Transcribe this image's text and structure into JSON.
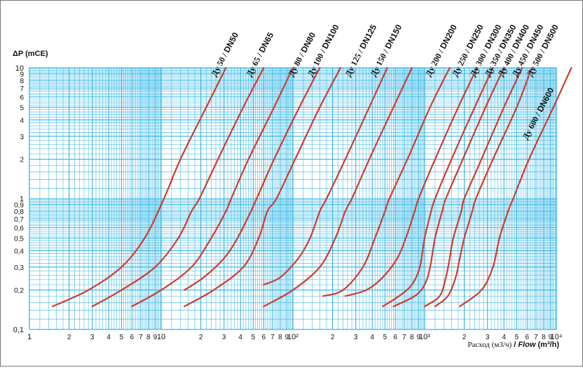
{
  "chart_data": {
    "type": "line",
    "log_x": true,
    "log_y": true,
    "xlim": [
      1,
      10000
    ],
    "ylim": [
      0.1,
      10
    ],
    "grid": true,
    "ylabel": "ΔP (mCE)",
    "xlabel_ru": "Расход (м3/ч)",
    "xlabel_sep": " / ",
    "xlabel_en": "Flow",
    "xlabel_unit": " (m³/h)",
    "x_ticks": [
      "1",
      "2",
      "3",
      "4",
      "5",
      "6",
      "7",
      "8",
      "9",
      "10",
      "2",
      "3",
      "4",
      "5",
      "6",
      "7",
      "8",
      "9",
      "10²",
      "2",
      "3",
      "4",
      "5",
      "6",
      "7",
      "8",
      "9",
      "10³",
      "2",
      "3",
      "4",
      "5",
      "6",
      "7",
      "8",
      "9",
      "10⁴"
    ],
    "y_ticks": [
      "0,1",
      "0,2",
      "0,3",
      "0,4",
      "0,5",
      "0,6",
      "0,7",
      "0,8",
      "0,9",
      "1",
      "2",
      "3",
      "4",
      "5",
      "6",
      "7",
      "8",
      "9",
      "10"
    ],
    "series": [
      {
        "name": "Ду 50 / DN50",
        "points": [
          [
            1.5,
            0.15
          ],
          [
            2.8,
            0.2
          ],
          [
            5,
            0.3
          ],
          [
            7.5,
            0.5
          ],
          [
            10.5,
            1
          ],
          [
            14,
            2
          ],
          [
            22,
            5
          ],
          [
            31,
            10
          ]
        ]
      },
      {
        "name": "Ду 65 / DN65",
        "points": [
          [
            3,
            0.15
          ],
          [
            5,
            0.2
          ],
          [
            9,
            0.3
          ],
          [
            13.5,
            0.5
          ],
          [
            17,
            0.8
          ],
          [
            19.5,
            1
          ],
          [
            27,
            2
          ],
          [
            42,
            5
          ],
          [
            60,
            10
          ]
        ]
      },
      {
        "name": "Ду 80 / DN80",
        "points": [
          [
            6,
            0.15
          ],
          [
            10,
            0.2
          ],
          [
            17,
            0.3
          ],
          [
            24,
            0.5
          ],
          [
            31,
            0.8
          ],
          [
            34,
            1
          ],
          [
            46,
            2
          ],
          [
            72,
            5
          ],
          [
            100,
            10
          ]
        ]
      },
      {
        "name": "Ду 100 / DN100",
        "points": [
          [
            15,
            0.2
          ],
          [
            21,
            0.25
          ],
          [
            30,
            0.35
          ],
          [
            38,
            0.5
          ],
          [
            48,
            0.8
          ],
          [
            53,
            1
          ],
          [
            72,
            2
          ],
          [
            112,
            5
          ],
          [
            160,
            10
          ]
        ]
      },
      {
        "name": "Ду 100 / DN100",
        "points": [
          [
            15,
            0.15
          ],
          [
            25,
            0.2
          ],
          [
            42,
            0.3
          ],
          [
            55,
            0.5
          ],
          [
            64,
            0.8
          ],
          [
            75,
            1
          ],
          [
            104,
            2
          ],
          [
            160,
            5
          ],
          [
            230,
            10
          ]
        ]
      },
      {
        "name": "Ду 125 / DN125",
        "points": [
          [
            60,
            0.22
          ],
          [
            80,
            0.25
          ],
          [
            110,
            0.35
          ],
          [
            135,
            0.5
          ],
          [
            160,
            0.8
          ],
          [
            180,
            1
          ],
          [
            250,
            2
          ],
          [
            380,
            5
          ],
          [
            520,
            10
          ]
        ]
      },
      {
        "name": "Ду 125 / DN125",
        "points": [
          [
            60,
            0.15
          ],
          [
            100,
            0.2
          ],
          [
            160,
            0.3
          ],
          [
            210,
            0.5
          ],
          [
            250,
            0.8
          ],
          [
            280,
            1
          ],
          [
            380,
            2
          ],
          [
            580,
            5
          ],
          [
            800,
            10
          ]
        ]
      },
      {
        "name": "Ду 150 / DN150",
        "points": [
          [
            170,
            0.18
          ],
          [
            240,
            0.2
          ],
          [
            340,
            0.3
          ],
          [
            420,
            0.5
          ],
          [
            500,
            0.8
          ],
          [
            540,
            1
          ],
          [
            740,
            2
          ],
          [
            1100,
            5
          ],
          [
            1550,
            10
          ]
        ]
      },
      {
        "name": "Ду 200 / DN200",
        "points": [
          [
            250,
            0.18
          ],
          [
            360,
            0.2
          ],
          [
            480,
            0.25
          ],
          [
            620,
            0.35
          ],
          [
            720,
            0.5
          ],
          [
            840,
            0.8
          ],
          [
            900,
            1
          ],
          [
            1200,
            2
          ],
          [
            1800,
            5
          ],
          [
            2500,
            10
          ]
        ]
      },
      {
        "name": "Ду 250 / DN250",
        "points": [
          [
            480,
            0.15
          ],
          [
            640,
            0.18
          ],
          [
            800,
            0.22
          ],
          [
            920,
            0.3
          ],
          [
            1000,
            0.5
          ],
          [
            1120,
            0.8
          ],
          [
            1200,
            1
          ],
          [
            1600,
            2
          ],
          [
            2400,
            5
          ],
          [
            3300,
            10
          ]
        ]
      },
      {
        "name": "Ду 300 / DN300",
        "points": [
          [
            580,
            0.15
          ],
          [
            840,
            0.18
          ],
          [
            1000,
            0.22
          ],
          [
            1100,
            0.3
          ],
          [
            1200,
            0.5
          ],
          [
            1360,
            0.8
          ],
          [
            1450,
            1
          ],
          [
            1950,
            2
          ],
          [
            2900,
            5
          ],
          [
            4000,
            10
          ]
        ]
      },
      {
        "name": "Ду 350 / DN350",
        "points": [
          [
            1200,
            0.15
          ],
          [
            1500,
            0.18
          ],
          [
            1720,
            0.25
          ],
          [
            1850,
            0.35
          ],
          [
            2000,
            0.5
          ],
          [
            2300,
            0.8
          ],
          [
            2450,
            1
          ],
          [
            3300,
            2
          ],
          [
            5000,
            5
          ],
          [
            6500,
            10
          ]
        ]
      },
      {
        "name": "Ду 400 / DN400",
        "points": [
          [
            1000,
            0.15
          ],
          [
            1300,
            0.18
          ],
          [
            1450,
            0.25
          ],
          [
            1550,
            0.35
          ],
          [
            1650,
            0.5
          ],
          [
            1900,
            0.8
          ],
          [
            2000,
            1
          ],
          [
            2700,
            2
          ],
          [
            4000,
            5
          ],
          [
            5500,
            10
          ]
        ]
      },
      {
        "name": "Ду 600 / DN600",
        "points": [
          [
            1850,
            0.15
          ],
          [
            2700,
            0.2
          ],
          [
            3300,
            0.3
          ],
          [
            3700,
            0.5
          ],
          [
            4300,
            0.8
          ],
          [
            4700,
            1
          ],
          [
            6200,
            2
          ],
          [
            9500,
            5
          ],
          [
            13000,
            10
          ]
        ]
      }
    ],
    "labels": [
      {
        "ru": "Ду 50 /",
        "en": "DN50",
        "x": 26,
        "y": 8.5
      },
      {
        "ru": "Ду 65 /",
        "en": "DN65",
        "x": 48,
        "y": 8.5
      },
      {
        "ru": "Ду 80 /",
        "en": "DN80",
        "x": 100,
        "y": 8.5
      },
      {
        "ru": "Ду 100 /",
        "en": "DN100",
        "x": 140,
        "y": 8.5
      },
      {
        "ru": "Ду 125 /",
        "en": "DN125",
        "x": 270,
        "y": 8.5
      },
      {
        "ru": "Ду 150 /",
        "en": "DN150",
        "x": 420,
        "y": 8.5
      },
      {
        "ru": "Ду 200 /",
        "en": "DN200",
        "x": 1100,
        "y": 8.5
      },
      {
        "ru": "Ду 250 /",
        "en": "DN250",
        "x": 1750,
        "y": 8.5
      },
      {
        "ru": "Ду 300 /",
        "en": "DN300",
        "x": 2400,
        "y": 8.5
      },
      {
        "ru": "Ду 350 /",
        "en": "DN350",
        "x": 3100,
        "y": 8.5
      },
      {
        "ru": "Ду 400 /",
        "en": "DN400",
        "x": 3900,
        "y": 8.5
      },
      {
        "ru": "Ду 450 /",
        "en": "DN450",
        "x": 5000,
        "y": 8.5
      },
      {
        "ru": "Ду 500 /",
        "en": "DN500",
        "x": 6500,
        "y": 8.5
      },
      {
        "ru": "Ду 600 /",
        "en": "DN600",
        "x": 6000,
        "y": 2.8
      }
    ],
    "colors": {
      "grid": "#2fb4e6",
      "curve": "#d23b2a",
      "frame": "#444444"
    }
  }
}
